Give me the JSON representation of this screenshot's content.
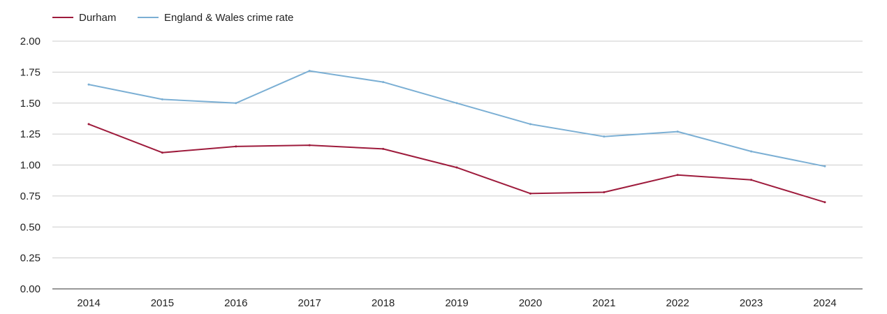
{
  "chart_data": {
    "type": "line",
    "title": "",
    "xlabel": "",
    "ylabel": "",
    "categories": [
      "2014",
      "2015",
      "2016",
      "2017",
      "2018",
      "2019",
      "2020",
      "2021",
      "2022",
      "2023",
      "2024"
    ],
    "ylim": [
      0,
      2.0
    ],
    "yticks": [
      "0.00",
      "0.25",
      "0.50",
      "0.75",
      "1.00",
      "1.25",
      "1.50",
      "1.75",
      "2.00"
    ],
    "ytick_values": [
      0,
      0.25,
      0.5,
      0.75,
      1.0,
      1.25,
      1.5,
      1.75,
      2.0
    ],
    "grid": true,
    "legend_position": "top-left",
    "series": [
      {
        "name": "Durham",
        "color": "#9e1b3c",
        "values": [
          1.33,
          1.1,
          1.15,
          1.16,
          1.13,
          0.98,
          0.77,
          0.78,
          0.92,
          0.88,
          0.7
        ]
      },
      {
        "name": "England & Wales crime rate",
        "color": "#7bafd4",
        "values": [
          1.65,
          1.53,
          1.5,
          1.76,
          1.67,
          1.5,
          1.33,
          1.23,
          1.27,
          1.11,
          0.99
        ]
      }
    ]
  }
}
